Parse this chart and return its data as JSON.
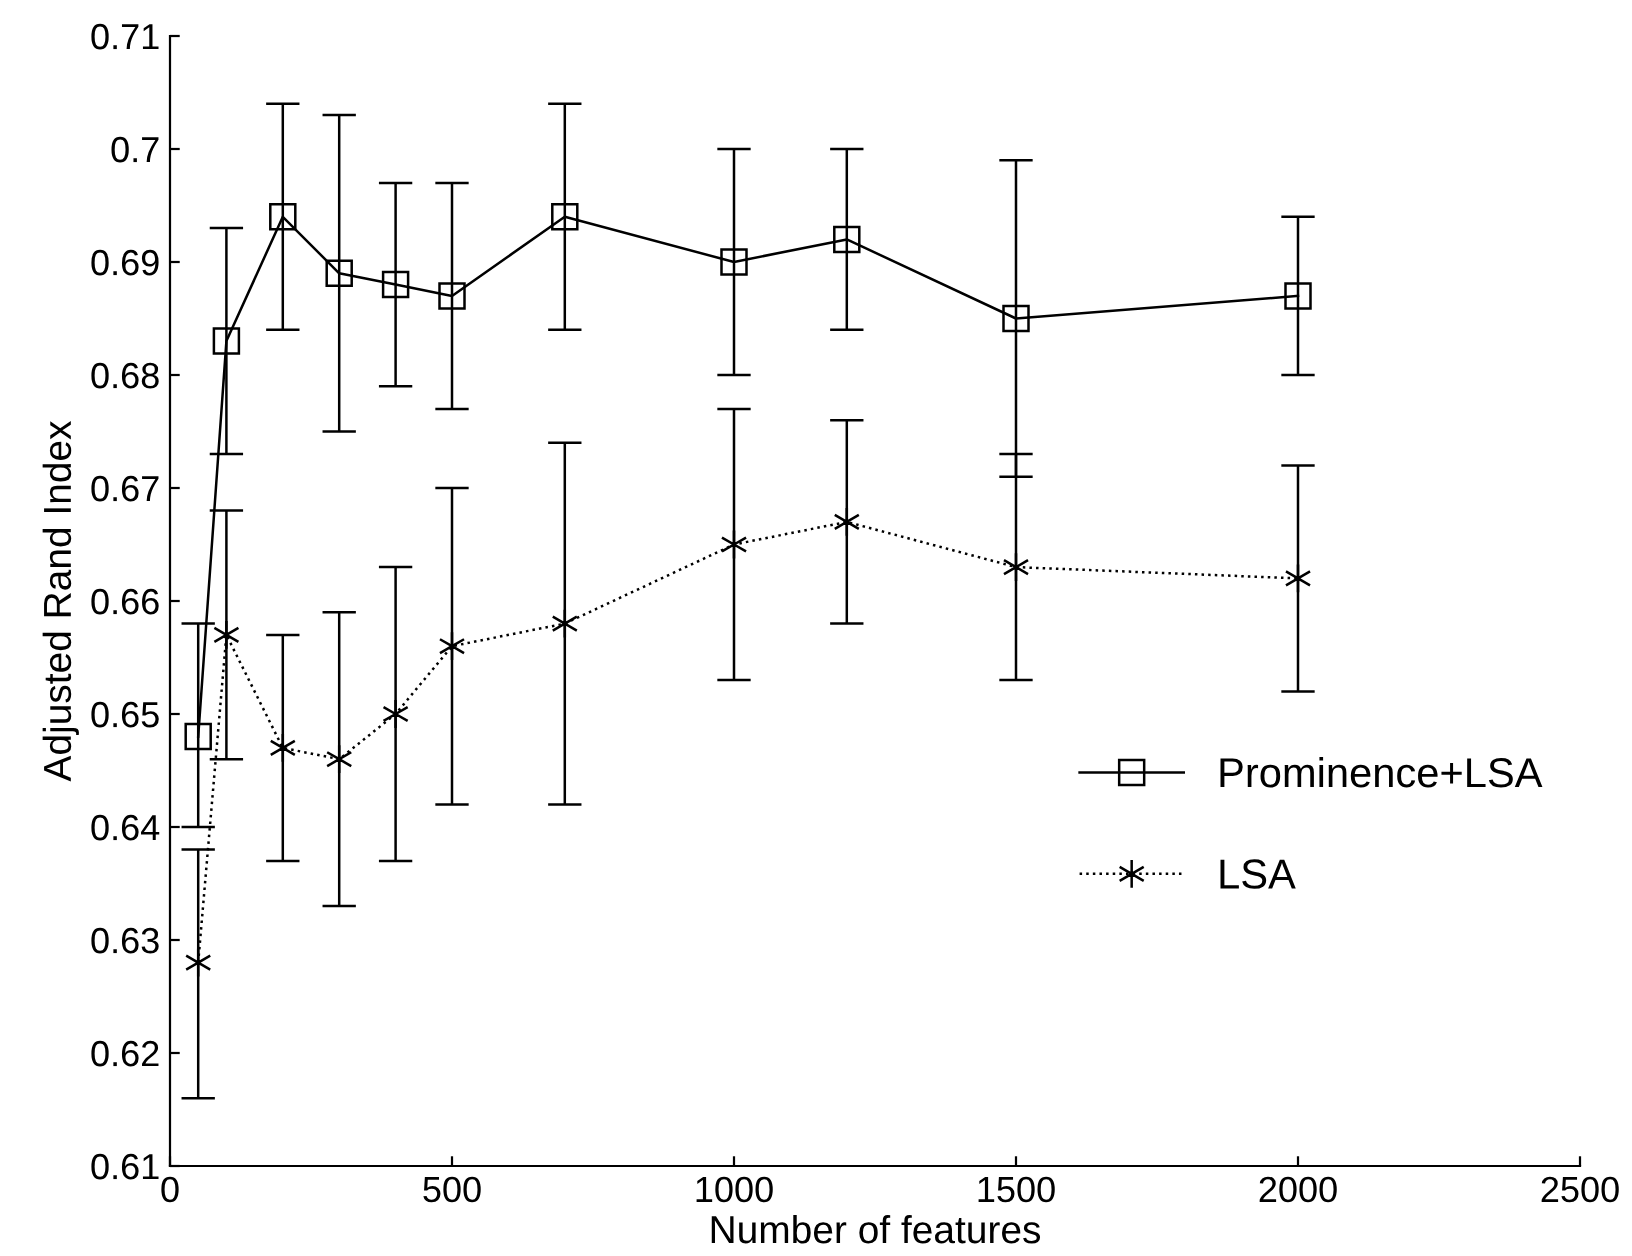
{
  "chart_data": {
    "type": "line",
    "xlabel": "Number of features",
    "ylabel": "Adjusted Rand Index",
    "x": [
      50,
      100,
      200,
      300,
      400,
      500,
      700,
      1000,
      1200,
      1500,
      2000
    ],
    "series": [
      {
        "name": "Prominence+LSA",
        "color": "#000000",
        "marker": "square",
        "line_style": "solid",
        "values": [
          0.648,
          0.683,
          0.694,
          0.689,
          0.688,
          0.687,
          0.694,
          0.69,
          0.692,
          0.685,
          0.687
        ],
        "errors": [
          [
            0.64,
            0.658
          ],
          [
            0.673,
            0.693
          ],
          [
            0.684,
            0.704
          ],
          [
            0.675,
            0.703
          ],
          [
            0.679,
            0.697
          ],
          [
            0.677,
            0.697
          ],
          [
            0.684,
            0.704
          ],
          [
            0.68,
            0.7
          ],
          [
            0.684,
            0.7
          ],
          [
            0.671,
            0.699
          ],
          [
            0.68,
            0.694
          ]
        ]
      },
      {
        "name": "LSA",
        "color": "#000000",
        "marker": "cross",
        "line_style": "dotted",
        "values": [
          0.628,
          0.657,
          0.647,
          0.646,
          0.65,
          0.656,
          0.658,
          0.665,
          0.667,
          0.663,
          0.662
        ],
        "errors": [
          [
            0.616,
            0.638
          ],
          [
            0.646,
            0.668
          ],
          [
            0.637,
            0.657
          ],
          [
            0.633,
            0.659
          ],
          [
            0.637,
            0.663
          ],
          [
            0.642,
            0.67
          ],
          [
            0.642,
            0.674
          ],
          [
            0.653,
            0.677
          ],
          [
            0.658,
            0.676
          ],
          [
            0.653,
            0.673
          ],
          [
            0.652,
            0.672
          ]
        ]
      }
    ],
    "xlim": [
      0,
      2500
    ],
    "xticks": [
      0,
      500,
      1000,
      1500,
      2000,
      2500
    ],
    "ylim": [
      0.61,
      0.71
    ],
    "yticks": [
      0.61,
      0.62,
      0.63,
      0.64,
      0.65,
      0.66,
      0.67,
      0.68,
      0.69,
      0.7,
      0.71
    ],
    "legend": "center right",
    "grid": false
  }
}
